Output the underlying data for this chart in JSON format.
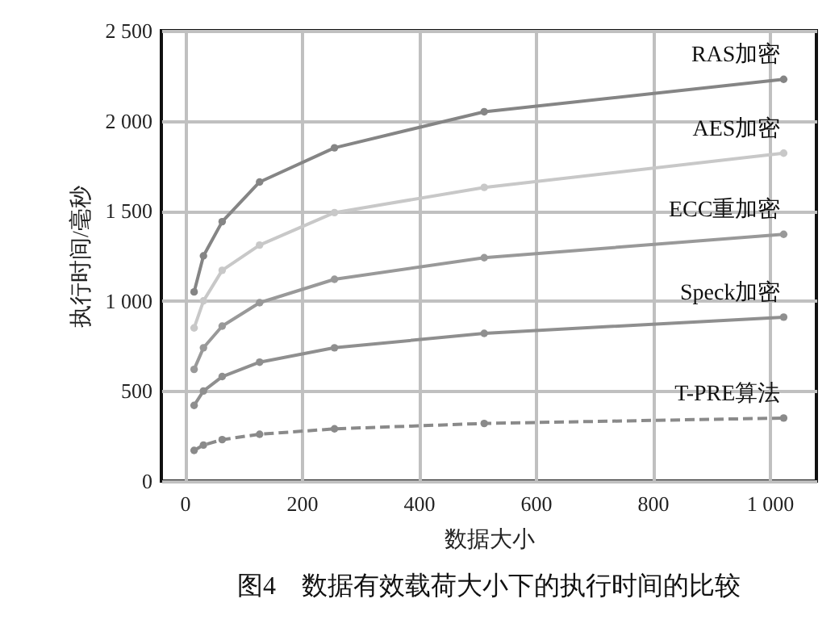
{
  "chart_data": {
    "type": "line",
    "title": "图4　数据有效载荷大小下的执行时间的比较",
    "xlabel": "数据大小",
    "ylabel": "执行时间/毫秒",
    "x": [
      16,
      32,
      64,
      128,
      256,
      512,
      1024
    ],
    "series": [
      {
        "name": "RAS加密",
        "color": "#858585",
        "values": [
          1050,
          1250,
          1440,
          1660,
          1850,
          2050,
          2230
        ]
      },
      {
        "name": "AES加密",
        "color": "#c8c8c8",
        "values": [
          850,
          1000,
          1170,
          1310,
          1490,
          1630,
          1820
        ]
      },
      {
        "name": "ECC重加密",
        "color": "#999999",
        "values": [
          620,
          740,
          860,
          990,
          1120,
          1240,
          1370
        ]
      },
      {
        "name": "Speck加密",
        "color": "#8f8f8f",
        "values": [
          420,
          500,
          580,
          660,
          740,
          820,
          910
        ]
      },
      {
        "name": "T-PRE算法",
        "color": "#8a8a8a",
        "line_style": "dashed",
        "values": [
          170,
          200,
          230,
          260,
          290,
          320,
          350
        ]
      }
    ],
    "xlim": [
      -40,
      1080
    ],
    "xticks": [
      0,
      200,
      400,
      600,
      800,
      {
        "value": 1000,
        "label": "1 000"
      }
    ],
    "ylim": [
      0,
      2500
    ],
    "yticks": [
      0,
      500,
      {
        "value": 1000,
        "label": "1 000"
      },
      {
        "value": 1500,
        "label": "1 500"
      },
      {
        "value": 2000,
        "label": "2 000"
      },
      {
        "value": 2500,
        "label": "2 500"
      }
    ],
    "grid": true,
    "marker": "circle"
  }
}
